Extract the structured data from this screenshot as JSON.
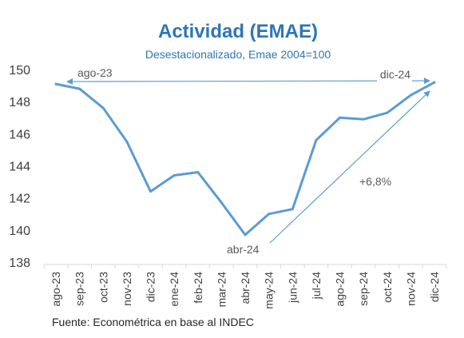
{
  "chart_data": {
    "type": "line",
    "title": "Actividad (EMAE)",
    "subtitle": "Desestacionalizado, Emae 2004=100",
    "categories": [
      "ago-23",
      "sep-23",
      "oct-23",
      "nov-23",
      "dic-23",
      "ene-24",
      "feb-24",
      "mar-24",
      "abr-24",
      "may-24",
      "jun-24",
      "jul-24",
      "ago-24",
      "sep-24",
      "oct-24",
      "nov-24",
      "dic-24"
    ],
    "series": [
      {
        "values": [
          149.1,
          148.8,
          147.6,
          145.5,
          142.4,
          143.4,
          143.6,
          141.7,
          139.7,
          141.0,
          141.3,
          145.6,
          147.0,
          146.9,
          147.3,
          148.4,
          149.2
        ]
      }
    ],
    "ylim": [
      138,
      150
    ],
    "yticks": [
      138,
      140,
      142,
      144,
      146,
      148,
      150
    ],
    "grid": false,
    "legend": "none",
    "line_color": "#5b9bd5",
    "text_color": "#2e75b6",
    "annotations": {
      "range_start": "ago-23",
      "range_end": "dic-24",
      "trough": "abr-24",
      "change": "+6,8%"
    },
    "source": "Fuente: Econométrica en base al INDEC"
  }
}
